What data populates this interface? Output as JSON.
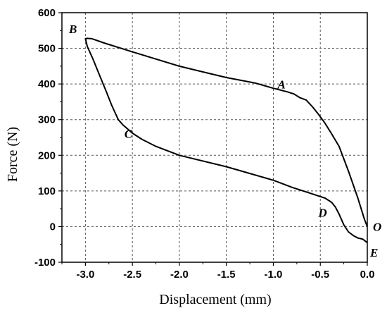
{
  "chart_data": {
    "type": "line",
    "xlabel": "Displacement (mm)",
    "ylabel": "Force (N)",
    "xlim": [
      -3.25,
      0.0
    ],
    "ylim": [
      -100,
      600
    ],
    "x_ticks": [
      -3.0,
      -2.5,
      -2.0,
      -1.5,
      -1.0,
      -0.5,
      0.0
    ],
    "x_tick_labels": [
      "-3.0",
      "-2.5",
      "-2.0",
      "-1.5",
      "-1.0",
      "-0.5",
      "0.0"
    ],
    "y_ticks": [
      -100,
      0,
      100,
      200,
      300,
      400,
      500,
      600
    ],
    "y_tick_labels": [
      "-100",
      "0",
      "100",
      "200",
      "300",
      "400",
      "500",
      "600"
    ],
    "grid": true,
    "series": [
      {
        "points": [
          [
            0.0,
            0
          ],
          [
            -0.03,
            20
          ],
          [
            -0.1,
            80
          ],
          [
            -0.2,
            155
          ],
          [
            -0.3,
            225
          ],
          [
            -0.38,
            260
          ],
          [
            -0.45,
            290
          ],
          [
            -0.52,
            315
          ],
          [
            -0.58,
            335
          ],
          [
            -0.65,
            355
          ],
          [
            -0.72,
            362
          ],
          [
            -0.78,
            372
          ],
          [
            -0.85,
            378
          ],
          [
            -1.0,
            388
          ],
          [
            -1.2,
            403
          ],
          [
            -1.5,
            418
          ],
          [
            -1.8,
            437
          ],
          [
            -2.0,
            450
          ],
          [
            -2.5,
            490
          ],
          [
            -2.8,
            515
          ],
          [
            -2.93,
            527
          ],
          [
            -2.98,
            528
          ],
          [
            -3.0,
            527
          ],
          [
            -2.98,
            505
          ],
          [
            -2.92,
            470
          ],
          [
            -2.85,
            425
          ],
          [
            -2.78,
            380
          ],
          [
            -2.72,
            340
          ],
          [
            -2.65,
            300
          ],
          [
            -2.6,
            285
          ],
          [
            -2.5,
            262
          ],
          [
            -2.4,
            245
          ],
          [
            -2.25,
            225
          ],
          [
            -2.0,
            200
          ],
          [
            -1.5,
            168
          ],
          [
            -1.0,
            130
          ],
          [
            -0.8,
            110
          ],
          [
            -0.6,
            93
          ],
          [
            -0.45,
            80
          ],
          [
            -0.38,
            68
          ],
          [
            -0.34,
            55
          ],
          [
            -0.3,
            35
          ],
          [
            -0.25,
            5
          ],
          [
            -0.2,
            -15
          ],
          [
            -0.15,
            -25
          ],
          [
            -0.1,
            -32
          ],
          [
            -0.05,
            -35
          ],
          [
            0.0,
            -45
          ]
        ]
      }
    ],
    "annotations": [
      {
        "text": "A",
        "x": -0.78,
        "y": 372,
        "anchor": "above-left"
      },
      {
        "text": "B",
        "x": -3.0,
        "y": 527,
        "anchor": "above-left"
      },
      {
        "text": "C",
        "x": -2.6,
        "y": 285,
        "anchor": "below-right"
      },
      {
        "text": "D",
        "x": -0.34,
        "y": 55,
        "anchor": "left"
      },
      {
        "text": "O",
        "x": 0.0,
        "y": 0,
        "anchor": "right"
      },
      {
        "text": "E",
        "x": 0.0,
        "y": -45,
        "anchor": "right-below"
      }
    ]
  }
}
